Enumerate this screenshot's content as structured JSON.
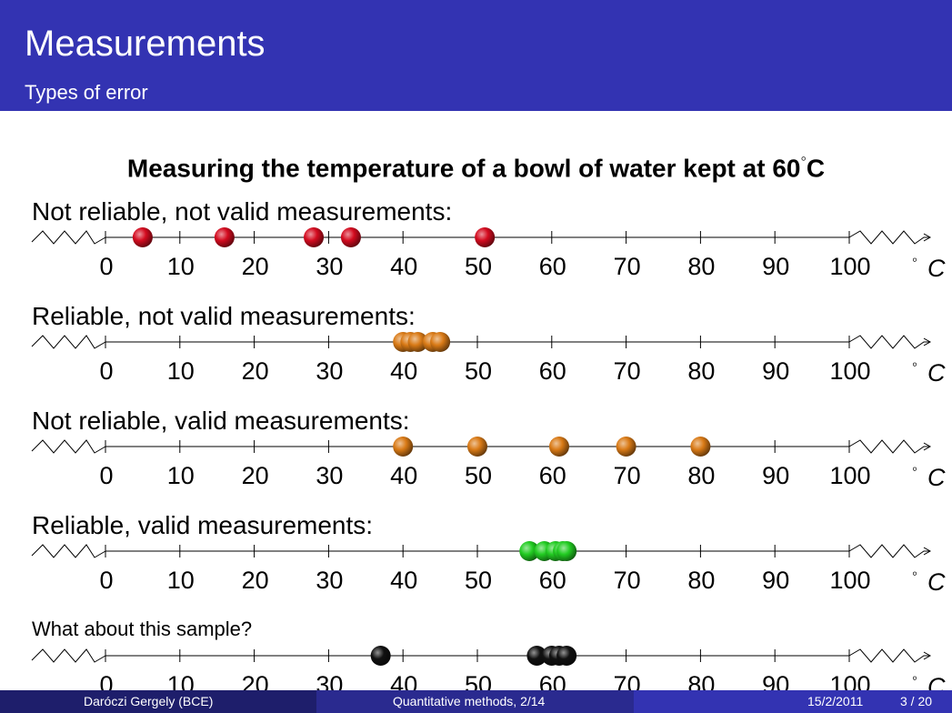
{
  "header": {
    "title": "Measurements",
    "subtitle": "Types of error"
  },
  "heading": {
    "text": "Measuring the temperature of a bowl of water kept at 60",
    "degree": "◦",
    "unit": "C"
  },
  "axis": {
    "ticks": [
      "0",
      "10",
      "20",
      "30",
      "40",
      "50",
      "60",
      "70",
      "80",
      "90",
      "100"
    ],
    "unit_degree": "◦",
    "unit_letter": "C"
  },
  "rows": [
    {
      "label": "Not reliable, not valid measurements:",
      "color": "#d40b1f",
      "points": [
        5,
        16,
        28,
        33,
        51
      ]
    },
    {
      "label": "Reliable, not valid measurements:",
      "color": "#d97a16",
      "points": [
        40,
        41,
        42,
        44,
        45
      ]
    },
    {
      "label": "Not reliable, valid measurements:",
      "color": "#d97a16",
      "points": [
        40,
        50,
        61,
        70,
        80
      ]
    },
    {
      "label": "Reliable, valid measurements:",
      "color": "#22cc22",
      "points": [
        57,
        59,
        60.5,
        61.5,
        62
      ]
    },
    {
      "label": "What about this sample?",
      "color": "#111111",
      "points": [
        37,
        58,
        60,
        61,
        62
      ]
    }
  ],
  "footer": {
    "author": "Daróczi Gergely  (BCE)",
    "course": "Quantitative methods, 2/14",
    "date": "15/2/2011",
    "page": "3 / 20"
  }
}
